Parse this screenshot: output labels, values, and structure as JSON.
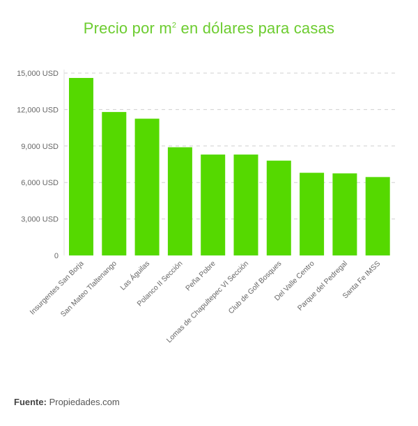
{
  "title_main": "Precio por m",
  "title_sup": "2",
  "title_rest": " en dólares para casas",
  "source_label": "Fuente:",
  "source_value": " Propiedades.com",
  "colors": {
    "bar": "#55d900",
    "title": "#6ccc2f",
    "grid": "#cfcfcf",
    "axis_text": "#666666"
  },
  "chart_data": {
    "type": "bar",
    "title": "Precio por m² en dólares para casas",
    "xlabel": "",
    "ylabel": "",
    "ylim": [
      0,
      15000
    ],
    "yticks": [
      0,
      3000,
      6000,
      9000,
      12000,
      15000
    ],
    "ytick_labels": [
      "0",
      "3,000 USD",
      "6,000 USD",
      "9,000 USD",
      "12,000 USD",
      "15,000 USD"
    ],
    "grid": true,
    "categories": [
      "Insurgentes San Borja",
      "San Mateo Tlaltenango",
      "Las Águilas",
      "Polanco II Sección",
      "Peña Pobre",
      "Lomas de Chapultepec VI Sección",
      "Club de Golf Bosques",
      "Del Valle Centro",
      "Parque del Pedregal",
      "Santa Fe IMSS"
    ],
    "values": [
      14600,
      11800,
      11250,
      8900,
      8300,
      8300,
      7800,
      6800,
      6750,
      6450
    ]
  }
}
